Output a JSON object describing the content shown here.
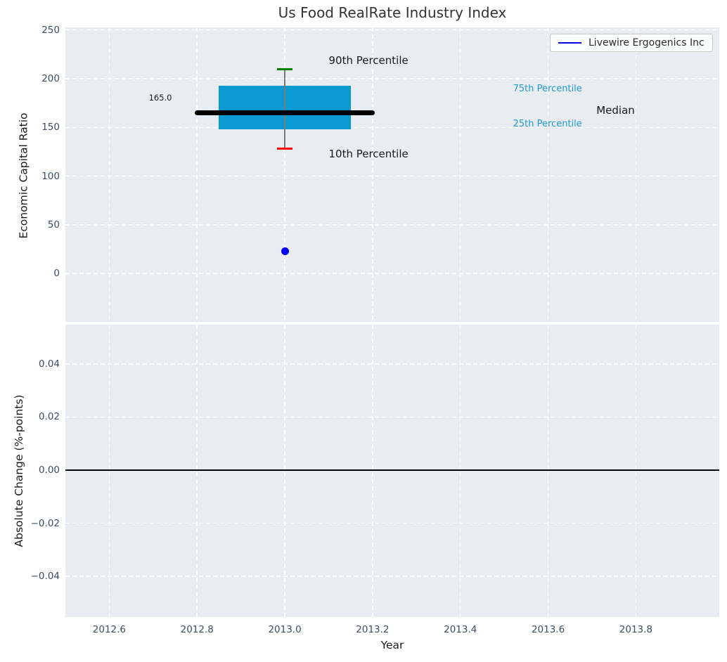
{
  "title": "Us Food RealRate Industry Index",
  "legend": {
    "label": "Livewire Ergogenics Inc",
    "line_color": "#0000ee"
  },
  "colors": {
    "axes_bg": "#e9edf1",
    "grid": "#ffffff",
    "box_fill": "#0a9ad2",
    "median_line": "#000000",
    "whisker": "#7a7a7a",
    "p90_cap": "#008000",
    "p10_cap": "#ff0000",
    "company_point": "#0000ee",
    "tick_label": "#3d4c63",
    "percentile_label": "#1f9cce",
    "zero_line": "#000000"
  },
  "chart_data": [
    {
      "type": "bar",
      "subtype": "box-percentile-plot",
      "title": "Us Food RealRate Industry Index",
      "ylabel": "Economic Capital Ratio",
      "xlim": [
        2012.5,
        2013.99
      ],
      "ylim": [
        -49.6,
        252.6
      ],
      "grid": "white dashed on",
      "legend_position": "upper right",
      "xticks": [
        {
          "v": 2012.6,
          "label": "2012.6"
        },
        {
          "v": 2012.8,
          "label": "2012.8"
        },
        {
          "v": 2013.0,
          "label": "2013.0"
        },
        {
          "v": 2013.2,
          "label": "2013.2"
        },
        {
          "v": 2013.4,
          "label": "2013.4"
        },
        {
          "v": 2013.6,
          "label": "2013.6"
        },
        {
          "v": 2013.8,
          "label": "2013.8"
        }
      ],
      "yticks": [
        {
          "v": 0,
          "label": "0"
        },
        {
          "v": 50,
          "label": "50"
        },
        {
          "v": 100,
          "label": "100"
        },
        {
          "v": 150,
          "label": "150"
        },
        {
          "v": 200,
          "label": "200"
        },
        {
          "v": 250,
          "label": "250"
        }
      ],
      "box": {
        "x": 2013.0,
        "p10": 128,
        "p25": 148,
        "median": 165.0,
        "p75": 193,
        "p90": 210,
        "box_x0": 2012.85,
        "box_x1": 2013.15,
        "median_x0": 2012.8,
        "median_x1": 2013.2
      },
      "series": [
        {
          "name": "Livewire Ergogenics Inc",
          "x": [
            2013.0
          ],
          "y": [
            23
          ],
          "marker": "circle"
        }
      ],
      "annotations": [
        {
          "text": "90th Percentile",
          "x": 2013.1,
          "y": 218,
          "size": 15,
          "color": "#1a1a1a"
        },
        {
          "text": "10th Percentile",
          "x": 2013.1,
          "y": 122,
          "size": 15,
          "color": "#1a1a1a"
        },
        {
          "text": "165.0",
          "x": 2012.69,
          "y": 180,
          "size": 11.5,
          "color": "#1a1a1a"
        },
        {
          "text": "75th Percentile",
          "x": 2013.52,
          "y": 189,
          "size": 13,
          "color": "#1f9cce"
        },
        {
          "text": "25th Percentile",
          "x": 2013.52,
          "y": 153,
          "size": 13,
          "color": "#1f9cce"
        },
        {
          "text": "Median",
          "x": 2013.71,
          "y": 167,
          "size": 15,
          "color": "#1a1a1a"
        }
      ]
    },
    {
      "type": "line",
      "ylabel": "Absolute Change (%-points)",
      "xlabel": "Year",
      "xlim": [
        2012.5,
        2013.99
      ],
      "ylim": [
        -0.0553,
        0.0548
      ],
      "grid": "white dashed on",
      "xticks": [
        {
          "v": 2012.6,
          "label": "2012.6"
        },
        {
          "v": 2012.8,
          "label": "2012.8"
        },
        {
          "v": 2013.0,
          "label": "2013.0"
        },
        {
          "v": 2013.2,
          "label": "2013.2"
        },
        {
          "v": 2013.4,
          "label": "2013.4"
        },
        {
          "v": 2013.6,
          "label": "2013.6"
        },
        {
          "v": 2013.8,
          "label": "2013.8"
        }
      ],
      "yticks": [
        {
          "v": 0.04,
          "label": "0.04"
        },
        {
          "v": 0.02,
          "label": "0.02"
        },
        {
          "v": 0.0,
          "label": "0.00"
        },
        {
          "v": -0.02,
          "label": "−0.02"
        },
        {
          "v": -0.04,
          "label": "−0.04"
        }
      ],
      "zero_line": 0.0,
      "series": []
    }
  ]
}
